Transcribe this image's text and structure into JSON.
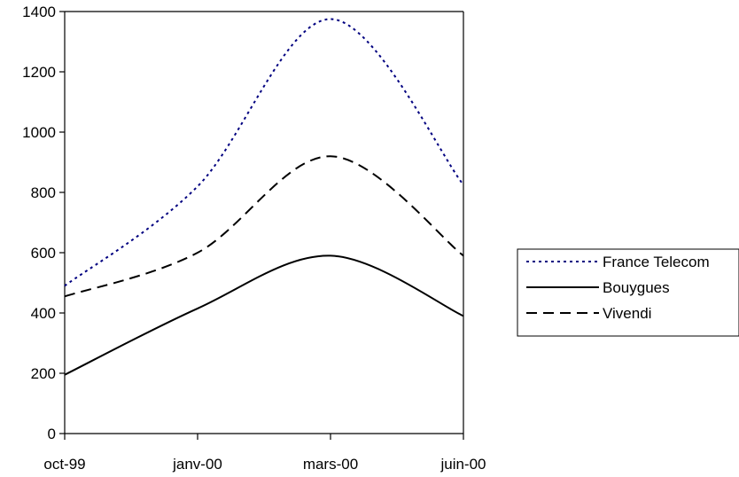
{
  "chart_data": {
    "type": "line",
    "title": "",
    "xlabel": "",
    "ylabel": "",
    "x": [
      "oct-99",
      "janv-00",
      "mars-00",
      "juin-00"
    ],
    "x_tick_labels": [
      "oct-99",
      "janv-00",
      "mars-00",
      "juin-00"
    ],
    "ylim": [
      0,
      1400
    ],
    "y_ticks": [
      0,
      200,
      400,
      600,
      800,
      1000,
      1200,
      1400
    ],
    "grid": false,
    "legend_position": "right",
    "series": [
      {
        "name": "France Telecom",
        "values": [
          490,
          820,
          1375,
          825
        ],
        "color": "#000080",
        "line_style": "dotted"
      },
      {
        "name": "Bouygues",
        "values": [
          195,
          415,
          590,
          390
        ],
        "color": "#000000",
        "line_style": "solid"
      },
      {
        "name": "Vivendi",
        "values": [
          455,
          600,
          920,
          590
        ],
        "color": "#000000",
        "line_style": "dashed"
      }
    ]
  }
}
